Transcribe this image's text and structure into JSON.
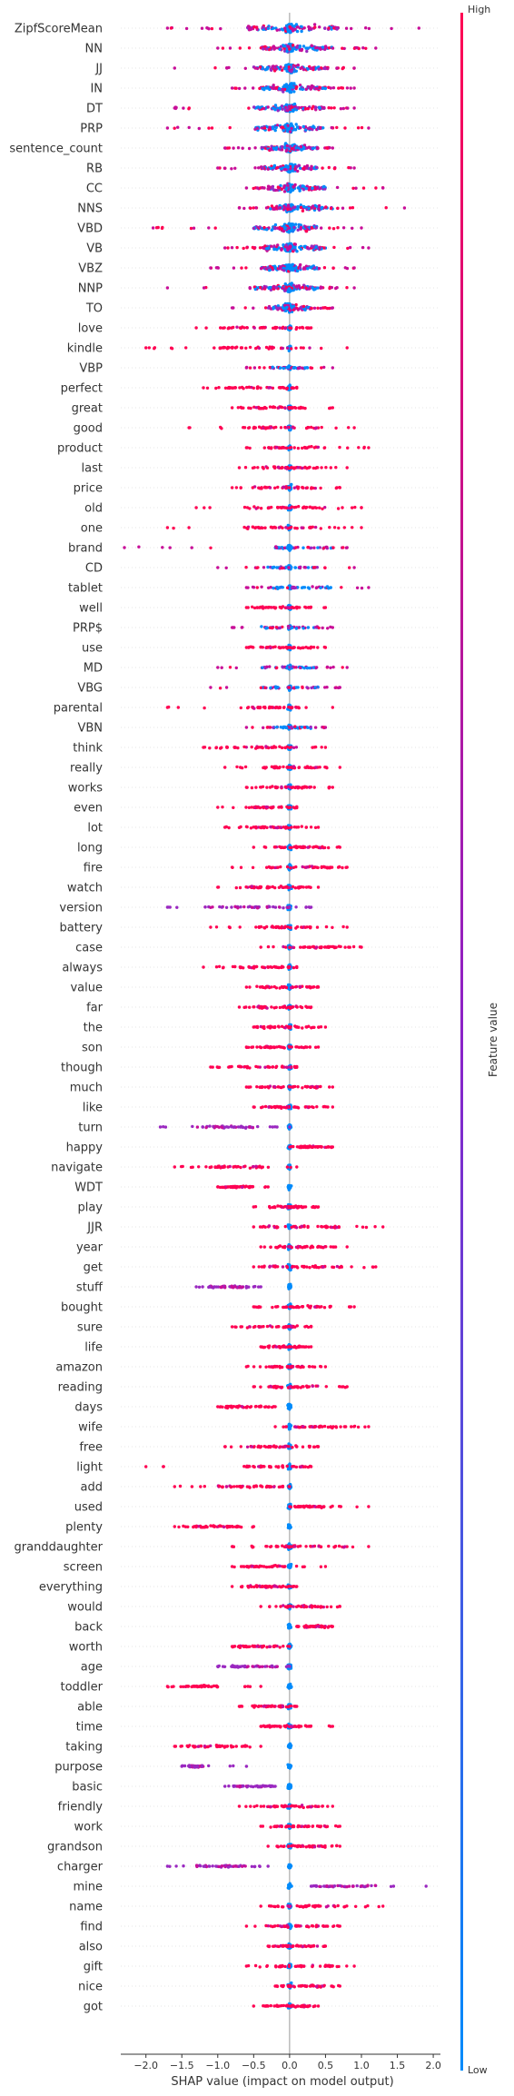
{
  "chart_data": {
    "type": "scatter",
    "subtype": "shap-beeswarm",
    "xlabel": "SHAP value (impact on model output)",
    "xlim": [
      -2.35,
      2.1
    ],
    "x_ticks": [
      -2.0,
      -1.5,
      -1.0,
      -0.5,
      0.0,
      0.5,
      1.0,
      1.5,
      2.0
    ],
    "x_tick_labels": [
      "−2.0",
      "−1.5",
      "−1.0",
      "−0.5",
      "0.0",
      "0.5",
      "1.0",
      "1.5",
      "2.0"
    ],
    "grid": false,
    "colorbar": {
      "title": "Feature value",
      "high_label": "High",
      "low_label": "Low",
      "high_color": "#ff0052",
      "low_color": "#008bfb"
    },
    "features": [
      {
        "name": "ZipfScoreMean",
        "min": -1.7,
        "max": 1.8,
        "core": [
          -0.6,
          0.7
        ],
        "color": "mixed"
      },
      {
        "name": "NN",
        "min": -1.0,
        "max": 1.2,
        "core": [
          -0.4,
          0.6
        ],
        "color": "mixed"
      },
      {
        "name": "JJ",
        "min": -1.6,
        "max": 0.9,
        "core": [
          -0.5,
          0.5
        ],
        "color": "mixed"
      },
      {
        "name": "IN",
        "min": -0.8,
        "max": 0.9,
        "core": [
          -0.4,
          0.5
        ],
        "color": "mixed"
      },
      {
        "name": "DT",
        "min": -1.6,
        "max": 0.9,
        "core": [
          -0.5,
          0.5
        ],
        "color": "mixed"
      },
      {
        "name": "PRP",
        "min": -1.7,
        "max": 1.1,
        "core": [
          -0.5,
          0.5
        ],
        "color": "mixed"
      },
      {
        "name": "sentence_count",
        "min": -0.9,
        "max": 0.6,
        "core": [
          -0.4,
          0.4
        ],
        "color": "mixed"
      },
      {
        "name": "RB",
        "min": -1.0,
        "max": 0.9,
        "core": [
          -0.4,
          0.4
        ],
        "color": "mixed"
      },
      {
        "name": "CC",
        "min": -0.6,
        "max": 1.3,
        "core": [
          -0.3,
          0.5
        ],
        "color": "mixed"
      },
      {
        "name": "NNS",
        "min": -0.7,
        "max": 1.6,
        "core": [
          -0.3,
          0.6
        ],
        "color": "mixed"
      },
      {
        "name": "VBD",
        "min": -1.9,
        "max": 1.0,
        "core": [
          -0.5,
          0.4
        ],
        "color": "mixed"
      },
      {
        "name": "VB",
        "min": -0.9,
        "max": 1.1,
        "core": [
          -0.4,
          0.5
        ],
        "color": "mixed"
      },
      {
        "name": "VBZ",
        "min": -1.1,
        "max": 0.9,
        "core": [
          -0.4,
          0.4
        ],
        "color": "mixed"
      },
      {
        "name": "NNP",
        "min": -1.7,
        "max": 0.9,
        "core": [
          -0.5,
          0.4
        ],
        "color": "mixed"
      },
      {
        "name": "TO",
        "min": -0.8,
        "max": 0.6,
        "core": [
          -0.3,
          0.3
        ],
        "color": "mixed"
      },
      {
        "name": "love",
        "min": -1.3,
        "max": 0.3,
        "core": [
          -0.9,
          0.2
        ],
        "color": "red"
      },
      {
        "name": "kindle",
        "min": -2.0,
        "max": 0.8,
        "core": [
          -1.0,
          0.3
        ],
        "color": "red"
      },
      {
        "name": "VBP",
        "min": -0.6,
        "max": 0.6,
        "core": [
          -0.3,
          0.3
        ],
        "color": "mixed"
      },
      {
        "name": "perfect",
        "min": -1.2,
        "max": 0.1,
        "core": [
          -0.9,
          0.1
        ],
        "color": "red"
      },
      {
        "name": "great",
        "min": -0.8,
        "max": 0.6,
        "core": [
          -0.5,
          0.3
        ],
        "color": "red"
      },
      {
        "name": "good",
        "min": -1.4,
        "max": 0.9,
        "core": [
          -0.6,
          0.4
        ],
        "color": "red"
      },
      {
        "name": "product",
        "min": -0.6,
        "max": 1.1,
        "core": [
          -0.3,
          0.6
        ],
        "color": "red"
      },
      {
        "name": "last",
        "min": -0.7,
        "max": 0.8,
        "core": [
          -0.4,
          0.4
        ],
        "color": "red"
      },
      {
        "name": "price",
        "min": -0.8,
        "max": 0.7,
        "core": [
          -0.5,
          0.4
        ],
        "color": "red"
      },
      {
        "name": "old",
        "min": -1.3,
        "max": 1.0,
        "core": [
          -0.6,
          0.5
        ],
        "color": "red"
      },
      {
        "name": "one",
        "min": -1.7,
        "max": 1.0,
        "core": [
          -0.6,
          0.5
        ],
        "color": "red"
      },
      {
        "name": "brand",
        "min": -2.3,
        "max": 0.8,
        "core": [
          -0.2,
          0.7
        ],
        "color": "mixed"
      },
      {
        "name": "CD",
        "min": -1.0,
        "max": 0.9,
        "core": [
          -0.4,
          0.4
        ],
        "color": "mixed"
      },
      {
        "name": "tablet",
        "min": -0.6,
        "max": 1.1,
        "core": [
          -0.3,
          0.6
        ],
        "color": "mixed"
      },
      {
        "name": "well",
        "min": -0.6,
        "max": 0.5,
        "core": [
          -0.4,
          0.3
        ],
        "color": "red"
      },
      {
        "name": "PRP$",
        "min": -0.8,
        "max": 0.6,
        "core": [
          -0.4,
          0.4
        ],
        "color": "mixed"
      },
      {
        "name": "use",
        "min": -0.6,
        "max": 0.5,
        "core": [
          -0.4,
          0.4
        ],
        "color": "red"
      },
      {
        "name": "MD",
        "min": -1.0,
        "max": 0.8,
        "core": [
          -0.4,
          0.4
        ],
        "color": "mixed"
      },
      {
        "name": "VBG",
        "min": -1.1,
        "max": 0.7,
        "core": [
          -0.4,
          0.4
        ],
        "color": "mixed"
      },
      {
        "name": "parental",
        "min": -1.7,
        "max": 0.6,
        "core": [
          -0.6,
          0.1
        ],
        "color": "red"
      },
      {
        "name": "VBN",
        "min": -0.6,
        "max": 0.5,
        "core": [
          -0.3,
          0.3
        ],
        "color": "mixed"
      },
      {
        "name": "think",
        "min": -1.2,
        "max": 0.5,
        "core": [
          -1.0,
          0.1
        ],
        "color": "red"
      },
      {
        "name": "really",
        "min": -0.9,
        "max": 0.7,
        "core": [
          -0.4,
          0.4
        ],
        "color": "red"
      },
      {
        "name": "works",
        "min": -0.6,
        "max": 0.6,
        "core": [
          -0.4,
          0.3
        ],
        "color": "red"
      },
      {
        "name": "even",
        "min": -1.0,
        "max": 0.1,
        "core": [
          -0.6,
          0.1
        ],
        "color": "red"
      },
      {
        "name": "lot",
        "min": -0.9,
        "max": 0.4,
        "core": [
          -0.6,
          0.2
        ],
        "color": "red"
      },
      {
        "name": "long",
        "min": -0.5,
        "max": 0.7,
        "core": [
          -0.2,
          0.5
        ],
        "color": "red"
      },
      {
        "name": "fire",
        "min": -0.8,
        "max": 0.8,
        "core": [
          -0.3,
          0.6
        ],
        "color": "red"
      },
      {
        "name": "watch",
        "min": -1.0,
        "max": 0.4,
        "core": [
          -0.6,
          0.2
        ],
        "color": "red"
      },
      {
        "name": "version",
        "min": -1.7,
        "max": 0.3,
        "core": [
          -1.2,
          0.0
        ],
        "color": "purple"
      },
      {
        "name": "battery",
        "min": -1.1,
        "max": 0.8,
        "core": [
          -0.5,
          0.4
        ],
        "color": "red"
      },
      {
        "name": "case",
        "min": -0.4,
        "max": 1.0,
        "core": [
          -0.1,
          0.7
        ],
        "color": "red"
      },
      {
        "name": "always",
        "min": -1.2,
        "max": 0.1,
        "core": [
          -0.8,
          0.1
        ],
        "color": "red"
      },
      {
        "name": "value",
        "min": -0.6,
        "max": 0.4,
        "core": [
          -0.4,
          0.3
        ],
        "color": "red"
      },
      {
        "name": "far",
        "min": -0.7,
        "max": 0.3,
        "core": [
          -0.5,
          0.2
        ],
        "color": "red"
      },
      {
        "name": "the",
        "min": -0.5,
        "max": 0.5,
        "core": [
          -0.4,
          0.4
        ],
        "color": "red"
      },
      {
        "name": "son",
        "min": -0.6,
        "max": 0.4,
        "core": [
          -0.4,
          0.3
        ],
        "color": "red"
      },
      {
        "name": "though",
        "min": -1.1,
        "max": 0.1,
        "core": [
          -0.9,
          0.1
        ],
        "color": "red"
      },
      {
        "name": "much",
        "min": -0.6,
        "max": 0.6,
        "core": [
          -0.4,
          0.4
        ],
        "color": "red"
      },
      {
        "name": "like",
        "min": -0.5,
        "max": 0.6,
        "core": [
          -0.3,
          0.4
        ],
        "color": "red"
      },
      {
        "name": "turn",
        "min": -1.8,
        "max": 0.0,
        "core": [
          -1.3,
          -0.5
        ],
        "color": "purple"
      },
      {
        "name": "happy",
        "min": 0.0,
        "max": 0.6,
        "core": [
          0.1,
          0.5
        ],
        "color": "red"
      },
      {
        "name": "navigate",
        "min": -1.6,
        "max": 0.1,
        "core": [
          -1.2,
          -0.3
        ],
        "color": "red"
      },
      {
        "name": "WDT",
        "min": -1.0,
        "max": -0.3,
        "core": [
          -0.9,
          -0.5
        ],
        "color": "red"
      },
      {
        "name": "play",
        "min": -0.5,
        "max": 0.4,
        "core": [
          -0.3,
          0.3
        ],
        "color": "red"
      },
      {
        "name": "JJR",
        "min": -0.5,
        "max": 1.3,
        "core": [
          -0.3,
          0.7
        ],
        "color": "red"
      },
      {
        "name": "year",
        "min": -0.4,
        "max": 0.8,
        "core": [
          -0.2,
          0.5
        ],
        "color": "red"
      },
      {
        "name": "get",
        "min": -0.5,
        "max": 1.2,
        "core": [
          -0.3,
          0.8
        ],
        "color": "red"
      },
      {
        "name": "stuff",
        "min": -1.3,
        "max": -0.4,
        "core": [
          -1.1,
          -0.6
        ],
        "color": "purple"
      },
      {
        "name": "bought",
        "min": -0.5,
        "max": 0.9,
        "core": [
          -0.3,
          0.6
        ],
        "color": "red"
      },
      {
        "name": "sure",
        "min": -0.8,
        "max": 0.3,
        "core": [
          -0.6,
          0.2
        ],
        "color": "red"
      },
      {
        "name": "life",
        "min": -0.4,
        "max": 0.3,
        "core": [
          -0.3,
          0.2
        ],
        "color": "red"
      },
      {
        "name": "amazon",
        "min": -0.6,
        "max": 0.5,
        "core": [
          -0.3,
          0.3
        ],
        "color": "red"
      },
      {
        "name": "reading",
        "min": -0.5,
        "max": 0.8,
        "core": [
          -0.3,
          0.4
        ],
        "color": "red"
      },
      {
        "name": "days",
        "min": -1.0,
        "max": -0.2,
        "core": [
          -0.9,
          -0.3
        ],
        "color": "red"
      },
      {
        "name": "wife",
        "min": -0.2,
        "max": 1.1,
        "core": [
          0.0,
          0.8
        ],
        "color": "red"
      },
      {
        "name": "free",
        "min": -0.9,
        "max": 0.4,
        "core": [
          -0.6,
          0.3
        ],
        "color": "red"
      },
      {
        "name": "light",
        "min": -2.0,
        "max": 0.3,
        "core": [
          -0.6,
          0.2
        ],
        "color": "red"
      },
      {
        "name": "add",
        "min": -1.6,
        "max": 0.0,
        "core": [
          -1.0,
          -0.1
        ],
        "color": "red"
      },
      {
        "name": "used",
        "min": 0.0,
        "max": 1.1,
        "core": [
          0.1,
          0.5
        ],
        "color": "red"
      },
      {
        "name": "plenty",
        "min": -1.6,
        "max": -0.5,
        "core": [
          -1.3,
          -0.6
        ],
        "color": "red"
      },
      {
        "name": "granddaughter",
        "min": -0.8,
        "max": 1.1,
        "core": [
          -0.3,
          0.8
        ],
        "color": "red"
      },
      {
        "name": "screen",
        "min": -0.8,
        "max": 0.5,
        "core": [
          -0.6,
          0.0
        ],
        "color": "red"
      },
      {
        "name": "everything",
        "min": -0.8,
        "max": 0.1,
        "core": [
          -0.6,
          0.0
        ],
        "color": "red"
      },
      {
        "name": "would",
        "min": -0.4,
        "max": 0.7,
        "core": [
          -0.1,
          0.5
        ],
        "color": "red"
      },
      {
        "name": "back",
        "min": 0.1,
        "max": 0.6,
        "core": [
          0.2,
          0.5
        ],
        "color": "red"
      },
      {
        "name": "worth",
        "min": -0.8,
        "max": 0.0,
        "core": [
          -0.7,
          -0.1
        ],
        "color": "red"
      },
      {
        "name": "age",
        "min": -1.0,
        "max": 0.0,
        "core": [
          -0.8,
          -0.1
        ],
        "color": "purple"
      },
      {
        "name": "toddler",
        "min": -1.7,
        "max": -0.4,
        "core": [
          -1.5,
          -1.0
        ],
        "color": "red"
      },
      {
        "name": "able",
        "min": -0.7,
        "max": 0.1,
        "core": [
          -0.5,
          0.0
        ],
        "color": "red"
      },
      {
        "name": "time",
        "min": -0.4,
        "max": 0.6,
        "core": [
          -0.3,
          0.3
        ],
        "color": "red"
      },
      {
        "name": "taking",
        "min": -1.6,
        "max": -0.4,
        "core": [
          -1.4,
          -0.6
        ],
        "color": "red"
      },
      {
        "name": "purpose",
        "min": -1.5,
        "max": -0.6,
        "core": [
          -1.4,
          -1.2
        ],
        "color": "purple"
      },
      {
        "name": "basic",
        "min": -0.9,
        "max": -0.2,
        "core": [
          -0.8,
          -0.3
        ],
        "color": "purple"
      },
      {
        "name": "friendly",
        "min": -0.7,
        "max": 0.6,
        "core": [
          -0.4,
          0.4
        ],
        "color": "red"
      },
      {
        "name": "work",
        "min": -0.4,
        "max": 0.7,
        "core": [
          -0.2,
          0.5
        ],
        "color": "red"
      },
      {
        "name": "grandson",
        "min": -0.3,
        "max": 0.7,
        "core": [
          -0.1,
          0.5
        ],
        "color": "red"
      },
      {
        "name": "charger",
        "min": -1.7,
        "max": -0.3,
        "core": [
          -1.3,
          -0.6
        ],
        "color": "purple"
      },
      {
        "name": "mine",
        "min": 0.3,
        "max": 1.9,
        "core": [
          0.4,
          1.2
        ],
        "color": "purple"
      },
      {
        "name": "name",
        "min": -0.4,
        "max": 1.3,
        "core": [
          -0.2,
          0.8
        ],
        "color": "red"
      },
      {
        "name": "find",
        "min": -0.6,
        "max": 0.7,
        "core": [
          -0.3,
          0.5
        ],
        "color": "red"
      },
      {
        "name": "also",
        "min": -0.3,
        "max": 0.5,
        "core": [
          -0.2,
          0.4
        ],
        "color": "red"
      },
      {
        "name": "gift",
        "min": -0.6,
        "max": 0.9,
        "core": [
          -0.2,
          0.6
        ],
        "color": "red"
      },
      {
        "name": "nice",
        "min": -0.2,
        "max": 0.7,
        "core": [
          -0.1,
          0.5
        ],
        "color": "red"
      },
      {
        "name": "got",
        "min": -0.5,
        "max": 0.4,
        "core": [
          -0.3,
          0.3
        ],
        "color": "red"
      }
    ]
  }
}
